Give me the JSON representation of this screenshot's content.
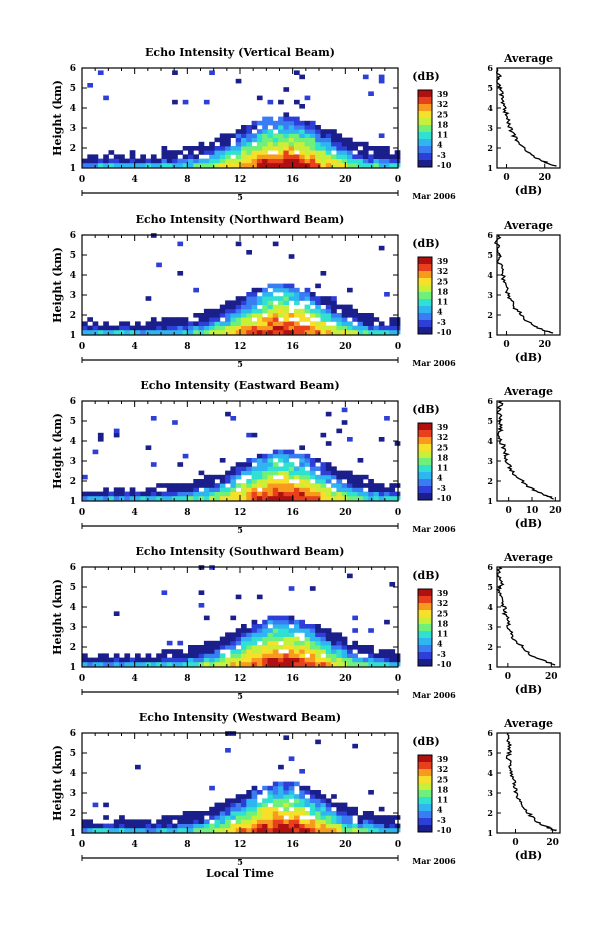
{
  "figure": {
    "time_axis_label": "Local Time",
    "date_label": "Mar 2006",
    "day_label": "5",
    "colorbar_unit": "(dB)",
    "colorbar_ticks": [
      "39",
      "32",
      "25",
      "18",
      "11",
      "4",
      "-3",
      "-10"
    ],
    "colormap": [
      "#1b1f8c",
      "#2d3fd6",
      "#3a7cf2",
      "#2fb5f0",
      "#30e0d0",
      "#6ef07a",
      "#c8f03a",
      "#f7e02a",
      "#f79a1e",
      "#e8401c",
      "#b01010"
    ]
  },
  "chart_data": [
    {
      "type": "heatmap",
      "title": "Echo Intensity (Vertical Beam)",
      "ylabel": "Height (km)",
      "x_ticks": [
        "0",
        "4",
        "8",
        "12",
        "16",
        "20",
        "0"
      ],
      "y_ticks": [
        "1",
        "2",
        "3",
        "4",
        "5",
        "6"
      ],
      "xlim": [
        0,
        24
      ],
      "ylim": [
        1,
        6
      ],
      "value_range_db": [
        -10,
        39
      ],
      "description_profile": [
        [
          1.3,
          32
        ],
        [
          1.6,
          24
        ],
        [
          2.0,
          10
        ],
        [
          2.5,
          2
        ],
        [
          3.0,
          -4
        ],
        [
          3.5,
          -7
        ],
        [
          4.0,
          -9
        ]
      ],
      "scattered_top_km": 4.7,
      "average_profile": {
        "title": "Average",
        "xlabel": "(dB)",
        "x_ticks": [
          "0",
          "20"
        ],
        "xlim": [
          -5,
          28
        ],
        "ylim": [
          1,
          6
        ],
        "y_ticks": [
          "1",
          "2",
          "3",
          "4",
          "5",
          "6"
        ],
        "x": [
          26,
          20,
          14,
          9,
          5,
          3,
          1,
          0,
          -1,
          -2,
          -3,
          -4,
          -4,
          -5
        ],
        "y": [
          1.1,
          1.3,
          1.6,
          2.0,
          2.4,
          2.8,
          3.2,
          3.6,
          4.0,
          4.4,
          4.8,
          5.2,
          5.6,
          6.0
        ]
      }
    },
    {
      "type": "heatmap",
      "title": "Echo Intensity (Northward Beam)",
      "ylabel": "Height (km)",
      "x_ticks": [
        "0",
        "4",
        "8",
        "12",
        "16",
        "20",
        "0"
      ],
      "y_ticks": [
        "1",
        "2",
        "3",
        "4",
        "5",
        "6"
      ],
      "xlim": [
        0,
        24
      ],
      "ylim": [
        1,
        6
      ],
      "value_range_db": [
        -10,
        39
      ],
      "average_profile": {
        "title": "Average",
        "xlabel": "(dB)",
        "x_ticks": [
          "0",
          "20"
        ],
        "xlim": [
          -5,
          28
        ],
        "ylim": [
          1,
          6
        ],
        "y_ticks": [
          "1",
          "2",
          "3",
          "4",
          "5",
          "6"
        ],
        "x": [
          24,
          18,
          12,
          8,
          4,
          2,
          0,
          -1,
          -2,
          -3,
          -4,
          -4,
          -5,
          -4
        ],
        "y": [
          1.1,
          1.3,
          1.6,
          2.0,
          2.4,
          2.8,
          3.2,
          3.6,
          4.0,
          4.4,
          4.8,
          5.2,
          5.6,
          6.0
        ]
      }
    },
    {
      "type": "heatmap",
      "title": "Echo Intensity (Eastward Beam)",
      "ylabel": "Height (km)",
      "x_ticks": [
        "0",
        "4",
        "8",
        "12",
        "16",
        "20",
        "0"
      ],
      "y_ticks": [
        "1",
        "2",
        "3",
        "4",
        "5",
        "6"
      ],
      "xlim": [
        0,
        24
      ],
      "ylim": [
        1,
        6
      ],
      "value_range_db": [
        -10,
        39
      ],
      "average_profile": {
        "title": "Average",
        "xlabel": "(dB)",
        "x_ticks": [
          "0",
          "10",
          "20"
        ],
        "xlim": [
          -5,
          22
        ],
        "ylim": [
          1,
          6
        ],
        "y_ticks": [
          "1",
          "2",
          "3",
          "4",
          "5",
          "6"
        ],
        "x": [
          20,
          15,
          10,
          6,
          2,
          0,
          -1,
          -2,
          -3,
          -4,
          -3,
          -4,
          -4,
          -3
        ],
        "y": [
          1.1,
          1.3,
          1.6,
          2.0,
          2.4,
          2.8,
          3.2,
          3.6,
          4.0,
          4.4,
          4.8,
          5.2,
          5.6,
          6.0
        ]
      }
    },
    {
      "type": "heatmap",
      "title": "Echo Intensity (Southward Beam)",
      "ylabel": "Height (km)",
      "x_ticks": [
        "0",
        "4",
        "8",
        "12",
        "16",
        "20",
        "0"
      ],
      "y_ticks": [
        "1",
        "2",
        "3",
        "4",
        "5",
        "6"
      ],
      "xlim": [
        0,
        24
      ],
      "ylim": [
        1,
        6
      ],
      "value_range_db": [
        -10,
        39
      ],
      "average_profile": {
        "title": "Average",
        "xlabel": "(dB)",
        "x_ticks": [
          "0",
          "20"
        ],
        "xlim": [
          -5,
          24
        ],
        "ylim": [
          1,
          6
        ],
        "y_ticks": [
          "1",
          "2",
          "3",
          "4",
          "5",
          "6"
        ],
        "x": [
          22,
          17,
          11,
          7,
          3,
          1,
          0,
          -1,
          -2,
          -3,
          -4,
          -3,
          -4,
          -4
        ],
        "y": [
          1.1,
          1.3,
          1.6,
          2.0,
          2.4,
          2.8,
          3.2,
          3.6,
          4.0,
          4.4,
          4.8,
          5.2,
          5.6,
          6.0
        ]
      }
    },
    {
      "type": "heatmap",
      "title": "Echo Intensity (Westward Beam)",
      "ylabel": "Height (km)",
      "x_ticks": [
        "0",
        "4",
        "8",
        "12",
        "16",
        "20",
        "0"
      ],
      "y_ticks": [
        "1",
        "2",
        "3",
        "4",
        "5",
        "6"
      ],
      "xlim": [
        0,
        24
      ],
      "ylim": [
        1,
        6
      ],
      "value_range_db": [
        -10,
        39
      ],
      "average_profile": {
        "title": "Average",
        "xlabel": "(dB)",
        "x_ticks": [
          "0",
          "20"
        ],
        "xlim": [
          -10,
          24
        ],
        "ylim": [
          1,
          6
        ],
        "y_ticks": [
          "1",
          "2",
          "3",
          "4",
          "5",
          "6"
        ],
        "x": [
          22,
          17,
          11,
          7,
          3,
          1,
          0,
          -1,
          -2,
          -3,
          -4,
          -3,
          -4,
          -4
        ],
        "y": [
          1.1,
          1.3,
          1.6,
          2.0,
          2.4,
          2.8,
          3.2,
          3.6,
          4.0,
          4.4,
          4.8,
          5.2,
          5.6,
          6.0
        ]
      }
    }
  ]
}
